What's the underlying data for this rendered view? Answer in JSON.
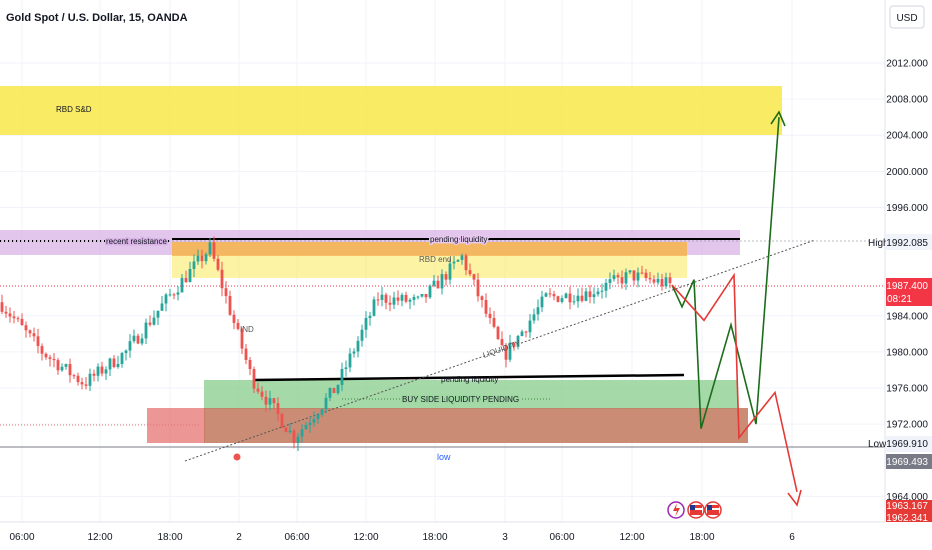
{
  "header": {
    "title": "Gold Spot / U.S. Dollar, 15, OANDA",
    "currency_button": "USD"
  },
  "price_axis": {
    "ticks": [
      "2012.000",
      "2008.000",
      "2004.000",
      "2000.000",
      "1996.000",
      "1984.000",
      "1980.000",
      "1976.000",
      "1972.000",
      "1964.000"
    ],
    "high_label": "High",
    "high_value": "1992.085",
    "current_price": "1987.400",
    "countdown": "08:21",
    "low_label": "Low",
    "low_value": "1969.910",
    "price_1969": "1969.493",
    "price_1963": "1963.167",
    "price_1962": "1962.341"
  },
  "time_axis": {
    "ticks": [
      "06:00",
      "12:00",
      "18:00",
      "2",
      "06:00",
      "12:00",
      "18:00",
      "3",
      "06:00",
      "12:00",
      "18:00",
      "6"
    ]
  },
  "annotations": {
    "rbd_sd": "RBD S&D",
    "recent_resistance": "recent resistance",
    "pending_liquidity_top": "pending liquidity",
    "rbd_end": "RBD end",
    "ind": "IND",
    "liquidity": "LIQUIDITY",
    "pending_liquidity_bottom": "pending liquidity",
    "buy_side": "BUY SIDE LIQUIDITY PENDING",
    "low": "low"
  },
  "colors": {
    "up_candle": "#26a69a",
    "down_candle": "#ef5350",
    "yellow_zone": "#f9e84a",
    "purple_zone": "#d9b3e6",
    "orange_zone": "#f5a94a",
    "green_zone": "#7fcb83",
    "red_zone": "#e57373",
    "brown_zone": "#c2785e",
    "projection_green": "#1b6d1b",
    "projection_red": "#e53935",
    "current_price_tag": "#f23645",
    "low_tag": "#787b86"
  },
  "chart_data": {
    "type": "candlestick",
    "title": "Gold Spot / U.S. Dollar, 15, OANDA",
    "timeframe": "15",
    "ylim": [
      1962,
      2015
    ],
    "current_price": 1987.4,
    "high": 1992.085,
    "low": 1969.91,
    "key_levels": {
      "rbd_sd_zone": [
        2004.5,
        2010.0
      ],
      "recent_resistance": 1992.2,
      "pending_liquidity_top": 1992.2,
      "rbd_end_zone": [
        1988.5,
        1992.0
      ],
      "pending_liquidity_bottom": 1977.2,
      "buy_side_liquidity_zone": [
        1970.0,
        1977.0
      ],
      "demand_zone": [
        1969.9,
        1973.5
      ]
    },
    "price_path_approx": [
      {
        "t": "prior session",
        "p": 1985.5
      },
      {
        "t": "06:00",
        "p": 1980.0
      },
      {
        "t": "09:00",
        "p": 1976.5
      },
      {
        "t": "12:00",
        "p": 1980.0
      },
      {
        "t": "16:00",
        "p": 1986.0
      },
      {
        "t": "18:00",
        "p": 1991.5
      },
      {
        "t": "21:00",
        "p": 1977.0
      },
      {
        "t": "22:30",
        "p": 1970.5
      },
      {
        "t": "2 00:00",
        "p": 1976.0
      },
      {
        "t": "06:00",
        "p": 1986.0
      },
      {
        "t": "12:00",
        "p": 1985.5
      },
      {
        "t": "18:00",
        "p": 1990.5
      },
      {
        "t": "21:00",
        "p": 1979.5
      },
      {
        "t": "3 00:00",
        "p": 1986.0
      },
      {
        "t": "06:00",
        "p": 1986.5
      },
      {
        "t": "12:00",
        "p": 1988.5
      },
      {
        "t": "15:00",
        "p": 1987.4
      }
    ],
    "projections": {
      "green": [
        1987.4,
        1985.0,
        1988.0,
        1971.5,
        1983.0,
        1972.0,
        2006.0
      ],
      "red": [
        1987.4,
        1983.5,
        1988.5,
        1970.5,
        1975.5,
        1964.5
      ]
    }
  }
}
